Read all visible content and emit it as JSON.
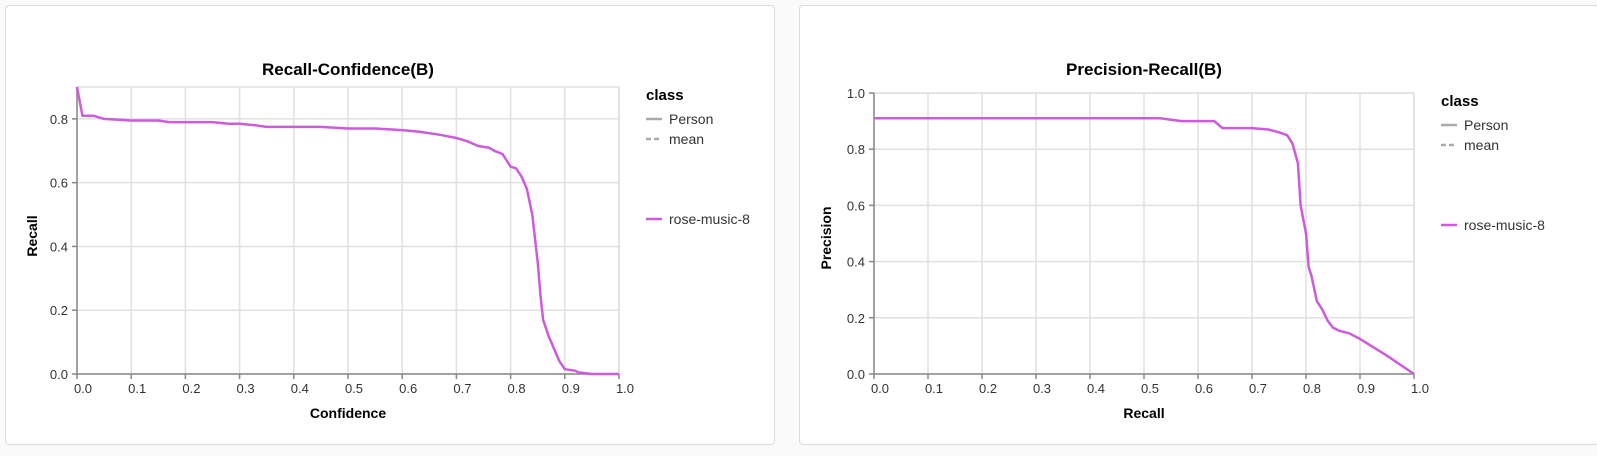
{
  "chart_data": [
    {
      "type": "line",
      "title": "Recall-Confidence(B)",
      "xlabel": "Confidence",
      "ylabel": "Recall",
      "xlim": [
        0,
        1.0
      ],
      "ylim": [
        0,
        0.9
      ],
      "xticks": [
        "0.0",
        "0.1",
        "0.2",
        "0.3",
        "0.4",
        "0.5",
        "0.6",
        "0.7",
        "0.8",
        "0.9",
        "1.0"
      ],
      "yticks": [
        "0.0",
        "0.2",
        "0.4",
        "0.6",
        "0.8"
      ],
      "grid": true,
      "legend_position": "right",
      "legend": {
        "title": "class",
        "entries": [
          {
            "label": "Person",
            "style": "solid",
            "color": "#aaaaaa"
          },
          {
            "label": "mean",
            "style": "dashed",
            "color": "#aaaaaa"
          },
          {
            "label": "rose-music-8",
            "style": "solid",
            "color": "#cc5cdb"
          }
        ]
      },
      "series": [
        {
          "name": "rose-music-8",
          "color": "#cc5cdb",
          "x": [
            0.0,
            0.01,
            0.03,
            0.05,
            0.1,
            0.15,
            0.17,
            0.2,
            0.25,
            0.28,
            0.3,
            0.33,
            0.35,
            0.4,
            0.45,
            0.5,
            0.55,
            0.6,
            0.63,
            0.65,
            0.67,
            0.7,
            0.72,
            0.74,
            0.76,
            0.77,
            0.785,
            0.8,
            0.81,
            0.82,
            0.83,
            0.84,
            0.85,
            0.855,
            0.86,
            0.87,
            0.89,
            0.9,
            0.92,
            0.925,
            0.95,
            1.0
          ],
          "y": [
            0.9,
            0.81,
            0.81,
            0.8,
            0.795,
            0.795,
            0.79,
            0.79,
            0.79,
            0.785,
            0.785,
            0.78,
            0.775,
            0.775,
            0.775,
            0.77,
            0.77,
            0.765,
            0.76,
            0.755,
            0.75,
            0.74,
            0.73,
            0.715,
            0.71,
            0.7,
            0.69,
            0.65,
            0.645,
            0.62,
            0.58,
            0.5,
            0.35,
            0.25,
            0.17,
            0.12,
            0.04,
            0.015,
            0.01,
            0.005,
            0.0,
            0.0
          ]
        }
      ]
    },
    {
      "type": "line",
      "title": "Precision-Recall(B)",
      "xlabel": "Recall",
      "ylabel": "Precision",
      "xlim": [
        0,
        1.0
      ],
      "ylim": [
        0,
        1.0
      ],
      "xticks": [
        "0.0",
        "0.1",
        "0.2",
        "0.3",
        "0.4",
        "0.5",
        "0.6",
        "0.7",
        "0.8",
        "0.9",
        "1.0"
      ],
      "yticks": [
        "0.0",
        "0.2",
        "0.4",
        "0.6",
        "0.8",
        "1.0"
      ],
      "grid": true,
      "legend_position": "right",
      "legend": {
        "title": "class",
        "entries": [
          {
            "label": "Person",
            "style": "solid",
            "color": "#aaaaaa"
          },
          {
            "label": "mean",
            "style": "dashed",
            "color": "#aaaaaa"
          },
          {
            "label": "rose-music-8",
            "style": "solid",
            "color": "#cc5cdb"
          }
        ]
      },
      "series": [
        {
          "name": "rose-music-8",
          "color": "#cc5cdb",
          "x": [
            0.0,
            0.1,
            0.2,
            0.3,
            0.4,
            0.5,
            0.53,
            0.55,
            0.57,
            0.6,
            0.63,
            0.645,
            0.7,
            0.73,
            0.75,
            0.765,
            0.775,
            0.785,
            0.79,
            0.8,
            0.805,
            0.81,
            0.82,
            0.83,
            0.84,
            0.85,
            0.86,
            0.87,
            0.88,
            0.9,
            0.95,
            1.0
          ],
          "y": [
            0.91,
            0.91,
            0.91,
            0.91,
            0.91,
            0.91,
            0.91,
            0.905,
            0.9,
            0.9,
            0.9,
            0.875,
            0.875,
            0.87,
            0.86,
            0.85,
            0.82,
            0.75,
            0.6,
            0.5,
            0.38,
            0.35,
            0.26,
            0.23,
            0.19,
            0.165,
            0.155,
            0.15,
            0.145,
            0.125,
            0.065,
            0.0
          ]
        }
      ]
    }
  ]
}
